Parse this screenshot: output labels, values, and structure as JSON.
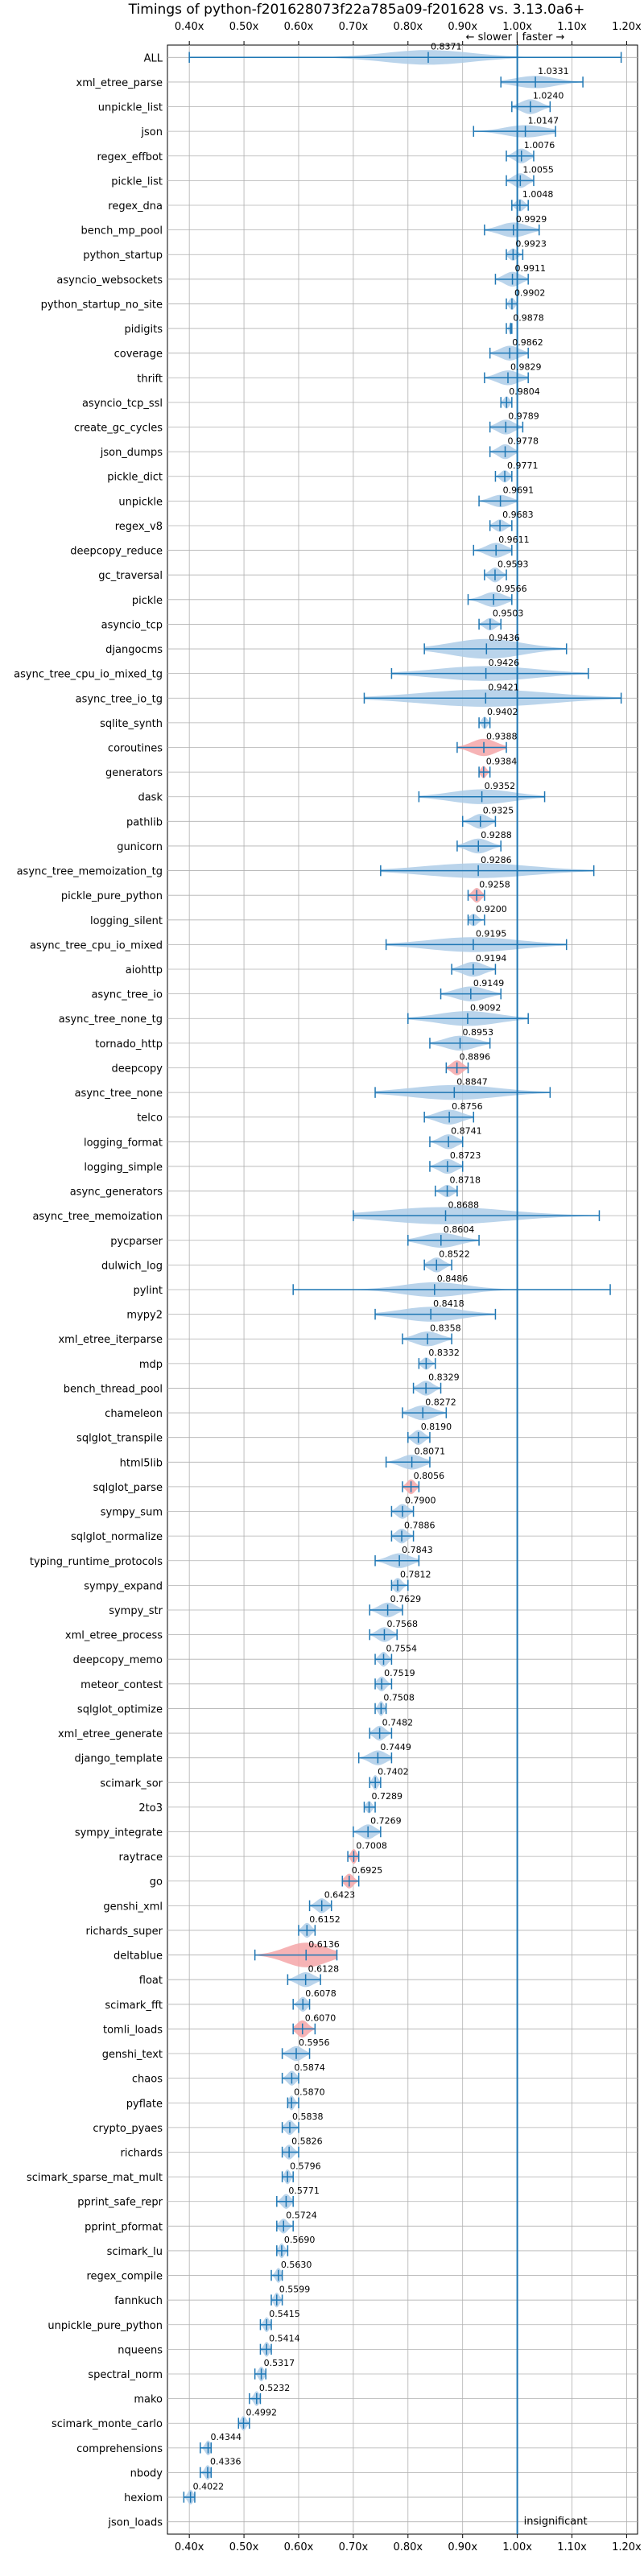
{
  "chart_data": {
    "type": "violin",
    "title": "Timings of python-f201628073f22a785a09-f201628 vs. 3.13.0a6+",
    "subtitle": "← slower | faster →",
    "xlim": [
      0.36,
      1.22
    ],
    "x_ticks": [
      0.4,
      0.5,
      0.6,
      0.7,
      0.8,
      0.9,
      1.0,
      1.1,
      1.2
    ],
    "x_tick_labels": [
      "0.40x",
      "0.50x",
      "0.60x",
      "0.70x",
      "0.80x",
      "0.90x",
      "1.00x",
      "1.10x",
      "1.20x"
    ],
    "x_ticks_top_and_bottom": true,
    "reference_line": 1.0,
    "grid": true,
    "insignificant_label": "insignificant",
    "colors": {
      "violin": "#aecde8",
      "violin_significant_slower": "#f4a6a8",
      "marker": "#1f77b4",
      "reference": "#1f77b4",
      "grid": "#b0b0b0"
    },
    "benchmarks": [
      {
        "name": "ALL",
        "value": 0.8371,
        "low": 0.4,
        "high": 1.19,
        "width": 0.6,
        "shape": "long",
        "highlight": false
      },
      {
        "name": "xml_etree_parse",
        "value": 1.0331,
        "low": 0.97,
        "high": 1.12,
        "width": 0.5,
        "highlight": false
      },
      {
        "name": "unpickle_list",
        "value": 1.024,
        "low": 0.99,
        "high": 1.06,
        "width": 0.6,
        "highlight": false
      },
      {
        "name": "json",
        "value": 1.0147,
        "low": 0.92,
        "high": 1.07,
        "width": 0.5,
        "highlight": false
      },
      {
        "name": "regex_effbot",
        "value": 1.0076,
        "low": 0.98,
        "high": 1.03,
        "width": 0.6,
        "highlight": false
      },
      {
        "name": "pickle_list",
        "value": 1.0055,
        "low": 0.98,
        "high": 1.03,
        "width": 0.6,
        "highlight": false
      },
      {
        "name": "regex_dna",
        "value": 1.0048,
        "low": 0.99,
        "high": 1.02,
        "width": 0.5,
        "highlight": false
      },
      {
        "name": "bench_mp_pool",
        "value": 0.9929,
        "low": 0.94,
        "high": 1.04,
        "width": 0.6,
        "highlight": false
      },
      {
        "name": "python_startup",
        "value": 0.9923,
        "low": 0.98,
        "high": 1.01,
        "width": 0.5,
        "highlight": false
      },
      {
        "name": "asyncio_websockets",
        "value": 0.9911,
        "low": 0.96,
        "high": 1.02,
        "width": 0.6,
        "highlight": false
      },
      {
        "name": "python_startup_no_site",
        "value": 0.9902,
        "low": 0.98,
        "high": 1.0,
        "width": 0.5,
        "highlight": false
      },
      {
        "name": "pidigits",
        "value": 0.9878,
        "low": 0.98,
        "high": 0.99,
        "width": 0.5,
        "highlight": false
      },
      {
        "name": "coverage",
        "value": 0.9862,
        "low": 0.95,
        "high": 1.02,
        "width": 0.6,
        "highlight": false
      },
      {
        "name": "thrift",
        "value": 0.9829,
        "low": 0.94,
        "high": 1.02,
        "width": 0.6,
        "highlight": false
      },
      {
        "name": "asyncio_tcp_ssl",
        "value": 0.9804,
        "low": 0.97,
        "high": 0.99,
        "width": 0.5,
        "highlight": false
      },
      {
        "name": "create_gc_cycles",
        "value": 0.9789,
        "low": 0.95,
        "high": 1.01,
        "width": 0.6,
        "highlight": false
      },
      {
        "name": "json_dumps",
        "value": 0.9778,
        "low": 0.95,
        "high": 1.0,
        "width": 0.6,
        "highlight": false
      },
      {
        "name": "pickle_dict",
        "value": 0.9771,
        "low": 0.96,
        "high": 0.99,
        "width": 0.5,
        "highlight": false
      },
      {
        "name": "unpickle",
        "value": 0.9691,
        "low": 0.93,
        "high": 1.0,
        "width": 0.5,
        "highlight": false
      },
      {
        "name": "regex_v8",
        "value": 0.9683,
        "low": 0.95,
        "high": 0.99,
        "width": 0.5,
        "highlight": false
      },
      {
        "name": "deepcopy_reduce",
        "value": 0.9611,
        "low": 0.92,
        "high": 0.99,
        "width": 0.6,
        "highlight": false
      },
      {
        "name": "gc_traversal",
        "value": 0.9593,
        "low": 0.94,
        "high": 0.98,
        "width": 0.6,
        "highlight": false
      },
      {
        "name": "pickle",
        "value": 0.9566,
        "low": 0.91,
        "high": 0.99,
        "width": 0.6,
        "highlight": false
      },
      {
        "name": "asyncio_tcp",
        "value": 0.9503,
        "low": 0.93,
        "high": 0.97,
        "width": 0.5,
        "highlight": false
      },
      {
        "name": "djangocms",
        "value": 0.9436,
        "low": 0.83,
        "high": 1.09,
        "width": 0.8,
        "highlight": false
      },
      {
        "name": "async_tree_cpu_io_mixed_tg",
        "value": 0.9426,
        "low": 0.77,
        "high": 1.13,
        "width": 0.6,
        "highlight": false
      },
      {
        "name": "async_tree_io_tg",
        "value": 0.9421,
        "low": 0.72,
        "high": 1.19,
        "width": 0.7,
        "highlight": false
      },
      {
        "name": "sqlite_synth",
        "value": 0.9402,
        "low": 0.93,
        "high": 0.95,
        "width": 0.5,
        "highlight": false
      },
      {
        "name": "coroutines",
        "value": 0.9388,
        "low": 0.89,
        "high": 0.98,
        "width": 0.7,
        "highlight": true
      },
      {
        "name": "generators",
        "value": 0.9384,
        "low": 0.93,
        "high": 0.95,
        "width": 0.5,
        "highlight": true
      },
      {
        "name": "dask",
        "value": 0.9352,
        "low": 0.82,
        "high": 1.05,
        "width": 0.6,
        "highlight": false
      },
      {
        "name": "pathlib",
        "value": 0.9325,
        "low": 0.9,
        "high": 0.96,
        "width": 0.6,
        "highlight": false
      },
      {
        "name": "gunicorn",
        "value": 0.9288,
        "low": 0.89,
        "high": 0.97,
        "width": 0.6,
        "highlight": false
      },
      {
        "name": "async_tree_memoization_tg",
        "value": 0.9286,
        "low": 0.75,
        "high": 1.14,
        "width": 0.6,
        "highlight": false
      },
      {
        "name": "pickle_pure_python",
        "value": 0.9258,
        "low": 0.91,
        "high": 0.94,
        "width": 0.6,
        "highlight": true
      },
      {
        "name": "logging_silent",
        "value": 0.92,
        "low": 0.91,
        "high": 0.94,
        "width": 0.5,
        "highlight": false
      },
      {
        "name": "async_tree_cpu_io_mixed",
        "value": 0.9195,
        "low": 0.76,
        "high": 1.09,
        "width": 0.6,
        "highlight": false
      },
      {
        "name": "aiohttp",
        "value": 0.9194,
        "low": 0.88,
        "high": 0.96,
        "width": 0.6,
        "highlight": false
      },
      {
        "name": "async_tree_io",
        "value": 0.9149,
        "low": 0.86,
        "high": 0.97,
        "width": 0.6,
        "highlight": false
      },
      {
        "name": "async_tree_none_tg",
        "value": 0.9092,
        "low": 0.8,
        "high": 1.02,
        "width": 0.6,
        "highlight": false
      },
      {
        "name": "tornado_http",
        "value": 0.8953,
        "low": 0.84,
        "high": 0.95,
        "width": 0.6,
        "highlight": false
      },
      {
        "name": "deepcopy",
        "value": 0.8896,
        "low": 0.87,
        "high": 0.91,
        "width": 0.6,
        "highlight": true
      },
      {
        "name": "async_tree_none",
        "value": 0.8847,
        "low": 0.74,
        "high": 1.06,
        "width": 0.6,
        "highlight": false
      },
      {
        "name": "telco",
        "value": 0.8756,
        "low": 0.83,
        "high": 0.92,
        "width": 0.6,
        "highlight": false
      },
      {
        "name": "logging_format",
        "value": 0.8741,
        "low": 0.84,
        "high": 0.9,
        "width": 0.6,
        "highlight": false
      },
      {
        "name": "logging_simple",
        "value": 0.8723,
        "low": 0.84,
        "high": 0.9,
        "width": 0.6,
        "highlight": false
      },
      {
        "name": "async_generators",
        "value": 0.8718,
        "low": 0.85,
        "high": 0.89,
        "width": 0.5,
        "highlight": false
      },
      {
        "name": "async_tree_memoization",
        "value": 0.8688,
        "low": 0.7,
        "high": 1.15,
        "width": 0.7,
        "highlight": false
      },
      {
        "name": "pycparser",
        "value": 0.8604,
        "low": 0.8,
        "high": 0.93,
        "width": 0.6,
        "highlight": false
      },
      {
        "name": "dulwich_log",
        "value": 0.8522,
        "low": 0.83,
        "high": 0.88,
        "width": 0.6,
        "highlight": false
      },
      {
        "name": "pylint",
        "value": 0.8486,
        "low": 0.59,
        "high": 1.17,
        "width": 0.6,
        "shape": "long",
        "highlight": false
      },
      {
        "name": "mypy2",
        "value": 0.8418,
        "low": 0.74,
        "high": 0.96,
        "width": 0.6,
        "highlight": false
      },
      {
        "name": "xml_etree_iterparse",
        "value": 0.8358,
        "low": 0.79,
        "high": 0.88,
        "width": 0.6,
        "highlight": false
      },
      {
        "name": "mdp",
        "value": 0.8332,
        "low": 0.82,
        "high": 0.85,
        "width": 0.5,
        "highlight": false
      },
      {
        "name": "bench_thread_pool",
        "value": 0.8329,
        "low": 0.81,
        "high": 0.86,
        "width": 0.6,
        "highlight": false
      },
      {
        "name": "chameleon",
        "value": 0.8272,
        "low": 0.79,
        "high": 0.87,
        "width": 0.6,
        "highlight": false
      },
      {
        "name": "sqlglot_transpile",
        "value": 0.819,
        "low": 0.8,
        "high": 0.84,
        "width": 0.6,
        "highlight": false
      },
      {
        "name": "html5lib",
        "value": 0.8071,
        "low": 0.76,
        "high": 0.84,
        "width": 0.6,
        "highlight": false
      },
      {
        "name": "sqlglot_parse",
        "value": 0.8056,
        "low": 0.79,
        "high": 0.82,
        "width": 0.6,
        "highlight": true
      },
      {
        "name": "sympy_sum",
        "value": 0.79,
        "low": 0.77,
        "high": 0.81,
        "width": 0.6,
        "highlight": false
      },
      {
        "name": "sqlglot_normalize",
        "value": 0.7886,
        "low": 0.77,
        "high": 0.81,
        "width": 0.6,
        "highlight": false
      },
      {
        "name": "typing_runtime_protocols",
        "value": 0.7843,
        "low": 0.74,
        "high": 0.82,
        "width": 0.6,
        "highlight": false
      },
      {
        "name": "sympy_expand",
        "value": 0.7812,
        "low": 0.77,
        "high": 0.8,
        "width": 0.6,
        "highlight": false
      },
      {
        "name": "sympy_str",
        "value": 0.7629,
        "low": 0.73,
        "high": 0.79,
        "width": 0.6,
        "highlight": false
      },
      {
        "name": "xml_etree_process",
        "value": 0.7568,
        "low": 0.73,
        "high": 0.78,
        "width": 0.6,
        "highlight": false
      },
      {
        "name": "deepcopy_memo",
        "value": 0.7554,
        "low": 0.74,
        "high": 0.77,
        "width": 0.6,
        "highlight": false
      },
      {
        "name": "meteor_contest",
        "value": 0.7519,
        "low": 0.74,
        "high": 0.77,
        "width": 0.6,
        "highlight": false
      },
      {
        "name": "sqlglot_optimize",
        "value": 0.7508,
        "low": 0.74,
        "high": 0.76,
        "width": 0.6,
        "highlight": false
      },
      {
        "name": "xml_etree_generate",
        "value": 0.7482,
        "low": 0.73,
        "high": 0.77,
        "width": 0.6,
        "highlight": false
      },
      {
        "name": "django_template",
        "value": 0.7449,
        "low": 0.71,
        "high": 0.77,
        "width": 0.6,
        "highlight": false
      },
      {
        "name": "scimark_sor",
        "value": 0.7402,
        "low": 0.73,
        "high": 0.75,
        "width": 0.6,
        "highlight": false
      },
      {
        "name": "2to3",
        "value": 0.7289,
        "low": 0.72,
        "high": 0.74,
        "width": 0.5,
        "highlight": false
      },
      {
        "name": "sympy_integrate",
        "value": 0.7269,
        "low": 0.7,
        "high": 0.75,
        "width": 0.6,
        "highlight": false
      },
      {
        "name": "raytrace",
        "value": 0.7008,
        "low": 0.69,
        "high": 0.71,
        "width": 0.6,
        "highlight": true
      },
      {
        "name": "go",
        "value": 0.6925,
        "low": 0.68,
        "high": 0.71,
        "width": 0.6,
        "highlight": true
      },
      {
        "name": "genshi_xml",
        "value": 0.6423,
        "low": 0.62,
        "high": 0.66,
        "width": 0.6,
        "highlight": false
      },
      {
        "name": "richards_super",
        "value": 0.6152,
        "low": 0.6,
        "high": 0.63,
        "width": 0.6,
        "highlight": false
      },
      {
        "name": "deltablue",
        "value": 0.6136,
        "low": 0.52,
        "high": 0.67,
        "width": 1.0,
        "highlight": true
      },
      {
        "name": "float",
        "value": 0.6128,
        "low": 0.58,
        "high": 0.64,
        "width": 0.6,
        "highlight": false
      },
      {
        "name": "scimark_fft",
        "value": 0.6078,
        "low": 0.59,
        "high": 0.62,
        "width": 0.6,
        "highlight": false
      },
      {
        "name": "tomli_loads",
        "value": 0.607,
        "low": 0.59,
        "high": 0.63,
        "width": 0.7,
        "highlight": true
      },
      {
        "name": "genshi_text",
        "value": 0.5956,
        "low": 0.57,
        "high": 0.62,
        "width": 0.6,
        "highlight": false
      },
      {
        "name": "chaos",
        "value": 0.5874,
        "low": 0.57,
        "high": 0.6,
        "width": 0.6,
        "highlight": false
      },
      {
        "name": "pyflate",
        "value": 0.587,
        "low": 0.58,
        "high": 0.6,
        "width": 0.6,
        "highlight": false
      },
      {
        "name": "crypto_pyaes",
        "value": 0.5838,
        "low": 0.57,
        "high": 0.6,
        "width": 0.6,
        "highlight": false
      },
      {
        "name": "richards",
        "value": 0.5826,
        "low": 0.57,
        "high": 0.6,
        "width": 0.6,
        "highlight": false
      },
      {
        "name": "scimark_sparse_mat_mult",
        "value": 0.5796,
        "low": 0.57,
        "high": 0.59,
        "width": 0.6,
        "highlight": false
      },
      {
        "name": "pprint_safe_repr",
        "value": 0.5771,
        "low": 0.56,
        "high": 0.59,
        "width": 0.6,
        "highlight": false
      },
      {
        "name": "pprint_pformat",
        "value": 0.5724,
        "low": 0.56,
        "high": 0.59,
        "width": 0.6,
        "highlight": false
      },
      {
        "name": "scimark_lu",
        "value": 0.569,
        "low": 0.56,
        "high": 0.58,
        "width": 0.6,
        "highlight": false
      },
      {
        "name": "regex_compile",
        "value": 0.563,
        "low": 0.55,
        "high": 0.57,
        "width": 0.6,
        "highlight": false
      },
      {
        "name": "fannkuch",
        "value": 0.5599,
        "low": 0.55,
        "high": 0.57,
        "width": 0.6,
        "highlight": false
      },
      {
        "name": "unpickle_pure_python",
        "value": 0.5415,
        "low": 0.53,
        "high": 0.55,
        "width": 0.6,
        "highlight": false
      },
      {
        "name": "nqueens",
        "value": 0.5414,
        "low": 0.53,
        "high": 0.55,
        "width": 0.6,
        "highlight": false
      },
      {
        "name": "spectral_norm",
        "value": 0.5317,
        "low": 0.52,
        "high": 0.54,
        "width": 0.6,
        "highlight": false
      },
      {
        "name": "mako",
        "value": 0.5232,
        "low": 0.51,
        "high": 0.53,
        "width": 0.6,
        "highlight": false
      },
      {
        "name": "scimark_monte_carlo",
        "value": 0.4992,
        "low": 0.49,
        "high": 0.51,
        "width": 0.6,
        "highlight": false
      },
      {
        "name": "comprehensions",
        "value": 0.4344,
        "low": 0.42,
        "high": 0.44,
        "width": 0.6,
        "highlight": false
      },
      {
        "name": "nbody",
        "value": 0.4336,
        "low": 0.42,
        "high": 0.44,
        "width": 0.6,
        "highlight": false
      },
      {
        "name": "hexiom",
        "value": 0.4022,
        "low": 0.39,
        "high": 0.41,
        "width": 0.6,
        "highlight": false
      },
      {
        "name": "json_loads",
        "value": null,
        "highlight": false
      }
    ]
  }
}
